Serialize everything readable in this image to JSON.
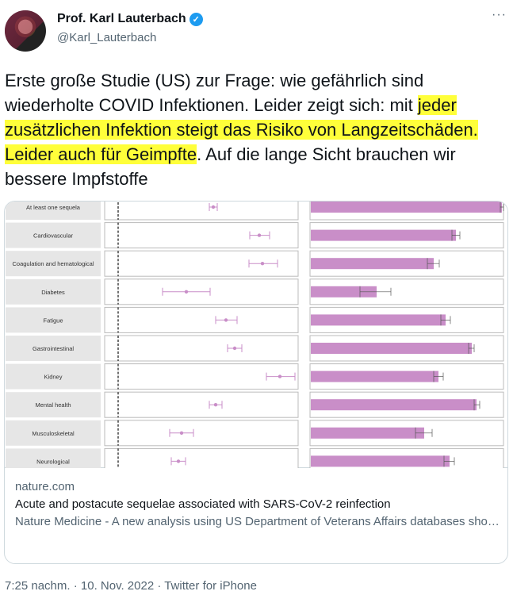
{
  "author": {
    "name": "Prof. Karl Lauterbach",
    "handle": "@Karl_Lauterbach",
    "verified": true
  },
  "more_icon": "more-horizontal-icon",
  "tweet": {
    "before": "Erste große Studie (US) zur Frage: wie gefährlich sind wiederholte COVID Infektionen. Leider zeigt sich: mit ",
    "highlight": "jeder zusätzlichen Infektion steigt das Risiko von Langzeitschäden. Leider auch für Geimpfte",
    "after": ". Auf die lange Sicht brauchen wir bessere Impfstoffe",
    "highlight_color": "#ffff3a"
  },
  "card": {
    "domain": "nature.com",
    "title": "Acute and postacute sequelae associated with SARS-CoV-2 reinfection",
    "description": "Nature Medicine - A new analysis using US Department of Veterans Affairs databases showed that reinfection is associated with increased risk of all-caus…",
    "image": {
      "series_color": "#c98ec8",
      "rows": [
        "At least one sequela",
        "Cardiovascular",
        "Coagulation and hematological",
        "Diabetes",
        "Fatigue",
        "Gastrointestinal",
        "Kidney",
        "Mental health",
        "Musculoskeletal",
        "Neurological"
      ]
    }
  },
  "footer": "7:25 nachm. · 10. Nov. 2022 · Twitter for iPhone"
}
